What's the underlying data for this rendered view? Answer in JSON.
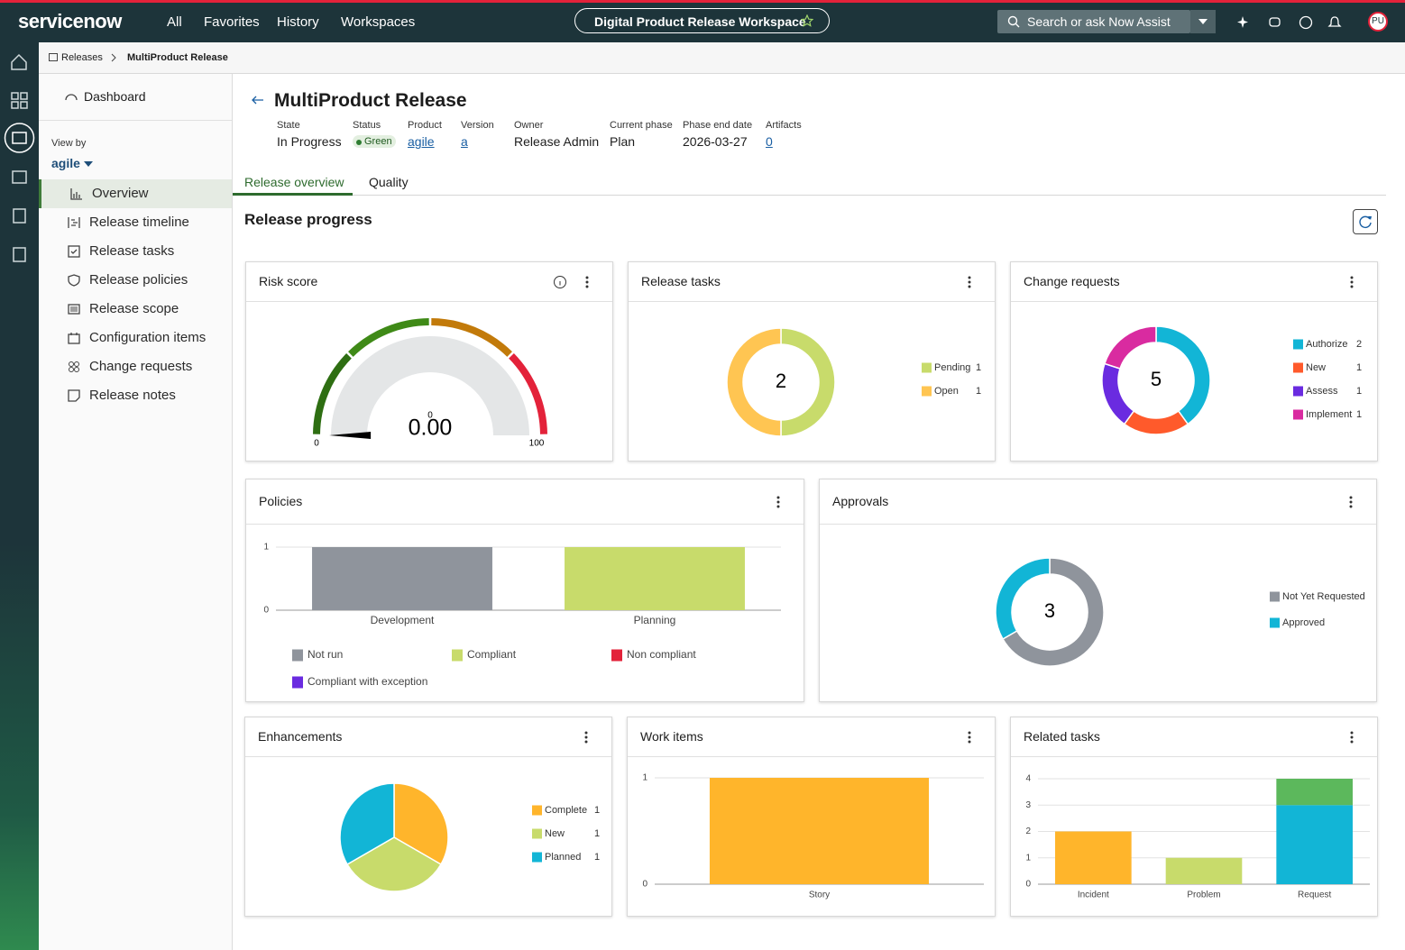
{
  "header": {
    "brand": "servicenow",
    "nav": [
      "All",
      "Favorites",
      "History",
      "Workspaces"
    ],
    "workspace": "Digital Product Release Workspace",
    "search": "Search or ask Now Assist",
    "avatar": "PU"
  },
  "breadcrumb": [
    "Releases",
    "MultiProduct Release"
  ],
  "sidebar": {
    "dashboard": "Dashboard",
    "view_by_label": "View by",
    "view_by": "agile",
    "items": [
      "Overview",
      "Release timeline",
      "Release tasks",
      "Release policies",
      "Release scope",
      "Configuration items",
      "Change requests",
      "Release notes"
    ]
  },
  "release": {
    "title": "MultiProduct Release",
    "fields": [
      {
        "label": "State",
        "value": "In Progress"
      },
      {
        "label": "Status",
        "value": "Green"
      },
      {
        "label": "Product",
        "value": "agile"
      },
      {
        "label": "Version",
        "value": "a"
      },
      {
        "label": "Owner",
        "value": "Release Admin"
      },
      {
        "label": "Current phase",
        "value": "Plan"
      },
      {
        "label": "Phase end date",
        "value": "2026-03-27"
      },
      {
        "label": "Artifacts",
        "value": 0
      }
    ]
  },
  "tabs": [
    "Release overview",
    "Quality"
  ],
  "section_title": "Release progress",
  "widgets": [
    {
      "title": "Risk score",
      "chart": {
        "type": "gauge",
        "values": [
          0
        ],
        "value_labels": [
          "0.00"
        ],
        "range": [
          0,
          100
        ],
        "band_colors": [
          "#2e6e12",
          "#3f8a17",
          "#c27a0a",
          "#e3223a"
        ]
      }
    },
    {
      "title": "Release tasks",
      "chart": {
        "type": "donut",
        "total": 2,
        "categories": [
          "Pending",
          "Open"
        ],
        "values": [
          1,
          1
        ],
        "colors": [
          "#c8db6b",
          "#ffc552"
        ],
        "legend_counts": true
      }
    },
    {
      "title": "Change requests",
      "chart": {
        "type": "donut",
        "total": 5,
        "categories": [
          "Authorize",
          "New",
          "Assess",
          "Implement"
        ],
        "values": [
          2,
          1,
          1,
          1
        ],
        "colors": [
          "#12b5d6",
          "#ff5a2b",
          "#6a2be0",
          "#d92ba0"
        ],
        "legend_counts": true
      }
    },
    {
      "title": "Policies",
      "chart": {
        "type": "stacked-bar",
        "categories": [
          "Development",
          "Planning"
        ],
        "ylim": [
          0,
          1
        ],
        "yticks": [
          0,
          1
        ],
        "series": [
          {
            "name": "Not run",
            "color": "#8f949c",
            "values": [
              1,
              0
            ]
          },
          {
            "name": "Compliant",
            "color": "#c8db6b",
            "values": [
              0,
              1
            ]
          },
          {
            "name": "Non compliant",
            "color": "#e3223a",
            "values": [
              0,
              0
            ]
          },
          {
            "name": "Compliant with exception",
            "color": "#6a2be0",
            "values": [
              0,
              0
            ]
          }
        ]
      }
    },
    {
      "title": "Approvals",
      "chart": {
        "type": "donut",
        "total": 3,
        "categories": [
          "Not Yet Requested",
          "Approved"
        ],
        "values": [
          2,
          1
        ],
        "colors": [
          "#8f949c",
          "#12b5d6"
        ],
        "legend_counts": false
      }
    },
    {
      "title": "Enhancements",
      "chart": {
        "type": "pie",
        "categories": [
          "Complete",
          "New",
          "Planned"
        ],
        "values": [
          1,
          1,
          1
        ],
        "colors": [
          "#ffb52b",
          "#c8db6b",
          "#12b5d6"
        ],
        "legend_counts": true
      }
    },
    {
      "title": "Work items",
      "chart": {
        "type": "bar",
        "categories": [
          "Story"
        ],
        "values": [
          1
        ],
        "color": "#ffb52b",
        "ylim": [
          0,
          1
        ],
        "yticks": [
          0,
          1
        ]
      }
    },
    {
      "title": "Related tasks",
      "chart": {
        "type": "stacked-bar",
        "categories": [
          "Incident",
          "Problem",
          "Request"
        ],
        "ylim": [
          0,
          4
        ],
        "yticks": [
          0,
          1,
          2,
          3,
          4
        ],
        "series": [
          {
            "color": "#ffb52b",
            "values": [
              2,
              0,
              0
            ]
          },
          {
            "color": "#c8db6b",
            "values": [
              0,
              1,
              0
            ]
          },
          {
            "color": "#12b5d6",
            "values": [
              0,
              0,
              3
            ]
          },
          {
            "color": "#5cb85c",
            "values": [
              0,
              0,
              1
            ]
          }
        ]
      }
    }
  ]
}
